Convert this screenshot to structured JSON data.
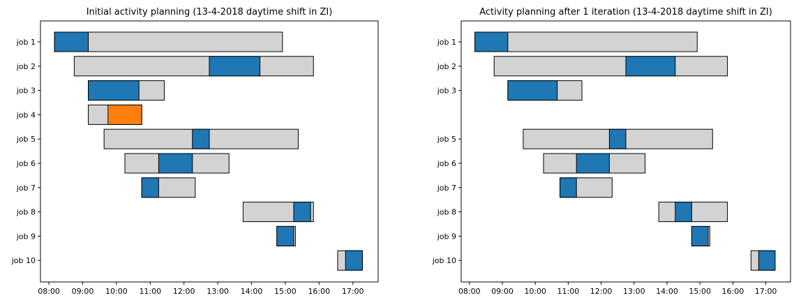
{
  "chart_data": [
    {
      "type": "gantt",
      "title": "Initial activity planning (13-4-2018 daytime shift in ZI)",
      "xlabel": "",
      "ylabel": "",
      "x_ticks": [
        "08:00",
        "09:00",
        "10:00",
        "11:00",
        "12:00",
        "13:00",
        "14:00",
        "15:00",
        "16:00",
        "17:00"
      ],
      "xlim": [
        "07:45",
        "17:45"
      ],
      "y_ticks": [
        "job 1",
        "job 2",
        "job 3",
        "job 4",
        "job 5",
        "job 6",
        "job 7",
        "job 8",
        "job 9",
        "job 10"
      ],
      "grid": false,
      "colors": {
        "window": "#d3d3d3",
        "activity": "#1f77b4",
        "highlight": "#ff7f0e",
        "edge": "#000000"
      },
      "jobs": [
        {
          "label": "job 1",
          "window": [
            "08:10",
            "14:55"
          ],
          "activity": [
            "08:10",
            "09:10"
          ],
          "highlight": false
        },
        {
          "label": "job 2",
          "window": [
            "08:45",
            "15:50"
          ],
          "activity": [
            "12:45",
            "14:15"
          ],
          "highlight": false
        },
        {
          "label": "job 3",
          "window": [
            "09:10",
            "11:25"
          ],
          "activity": [
            "09:10",
            "10:40"
          ],
          "highlight": false
        },
        {
          "label": "job 4",
          "window": [
            "09:10",
            "10:45"
          ],
          "activity": [
            "09:45",
            "10:45"
          ],
          "highlight": true
        },
        {
          "label": "job 5",
          "window": [
            "09:38",
            "15:23"
          ],
          "activity": [
            "12:15",
            "12:45"
          ],
          "highlight": false
        },
        {
          "label": "job 6",
          "window": [
            "10:15",
            "13:20"
          ],
          "activity": [
            "11:15",
            "12:15"
          ],
          "highlight": false
        },
        {
          "label": "job 7",
          "window": [
            "10:45",
            "12:20"
          ],
          "activity": [
            "10:45",
            "11:15"
          ],
          "highlight": false
        },
        {
          "label": "job 8",
          "window": [
            "13:45",
            "15:50"
          ],
          "activity": [
            "15:15",
            "15:45"
          ],
          "highlight": false
        },
        {
          "label": "job 9",
          "window": [
            "14:45",
            "15:18"
          ],
          "activity": [
            "14:45",
            "15:15"
          ],
          "highlight": false
        },
        {
          "label": "job 10",
          "window": [
            "16:33",
            "17:17"
          ],
          "activity": [
            "16:47",
            "17:17"
          ],
          "highlight": false
        }
      ]
    },
    {
      "type": "gantt",
      "title": "Activity planning after 1 iteration (13-4-2018 daytime shift in ZI)",
      "xlabel": "",
      "ylabel": "",
      "x_ticks": [
        "08:00",
        "09:00",
        "10:00",
        "11:00",
        "12:00",
        "13:00",
        "14:00",
        "15:00",
        "16:00",
        "17:00"
      ],
      "xlim": [
        "07:45",
        "17:45"
      ],
      "y_ticks": [
        "job 1",
        "job 2",
        "job 3",
        "",
        "job 5",
        "job 6",
        "job 7",
        "job 8",
        "job 9",
        "job 10"
      ],
      "grid": false,
      "colors": {
        "window": "#d3d3d3",
        "activity": "#1f77b4",
        "highlight": "#ff7f0e",
        "edge": "#000000"
      },
      "jobs": [
        {
          "label": "job 1",
          "window": [
            "08:10",
            "14:55"
          ],
          "activity": [
            "08:10",
            "09:10"
          ],
          "highlight": false
        },
        {
          "label": "job 2",
          "window": [
            "08:45",
            "15:50"
          ],
          "activity": [
            "12:45",
            "14:15"
          ],
          "highlight": false
        },
        {
          "label": "job 3",
          "window": [
            "09:10",
            "11:25"
          ],
          "activity": [
            "09:10",
            "10:40"
          ],
          "highlight": false
        },
        {
          "label": "job 5",
          "window": [
            "09:38",
            "15:23"
          ],
          "activity": [
            "12:15",
            "12:45"
          ],
          "highlight": false
        },
        {
          "label": "job 6",
          "window": [
            "10:15",
            "13:20"
          ],
          "activity": [
            "11:15",
            "12:15"
          ],
          "highlight": false
        },
        {
          "label": "job 7",
          "window": [
            "10:45",
            "12:20"
          ],
          "activity": [
            "10:45",
            "11:15"
          ],
          "highlight": false
        },
        {
          "label": "job 8",
          "window": [
            "13:45",
            "15:50"
          ],
          "activity": [
            "14:15",
            "14:45"
          ],
          "highlight": false
        },
        {
          "label": "job 9",
          "window": [
            "14:45",
            "15:18"
          ],
          "activity": [
            "14:45",
            "15:15"
          ],
          "highlight": false
        },
        {
          "label": "job 10",
          "window": [
            "16:33",
            "17:17"
          ],
          "activity": [
            "16:47",
            "17:17"
          ],
          "highlight": false
        }
      ]
    }
  ]
}
